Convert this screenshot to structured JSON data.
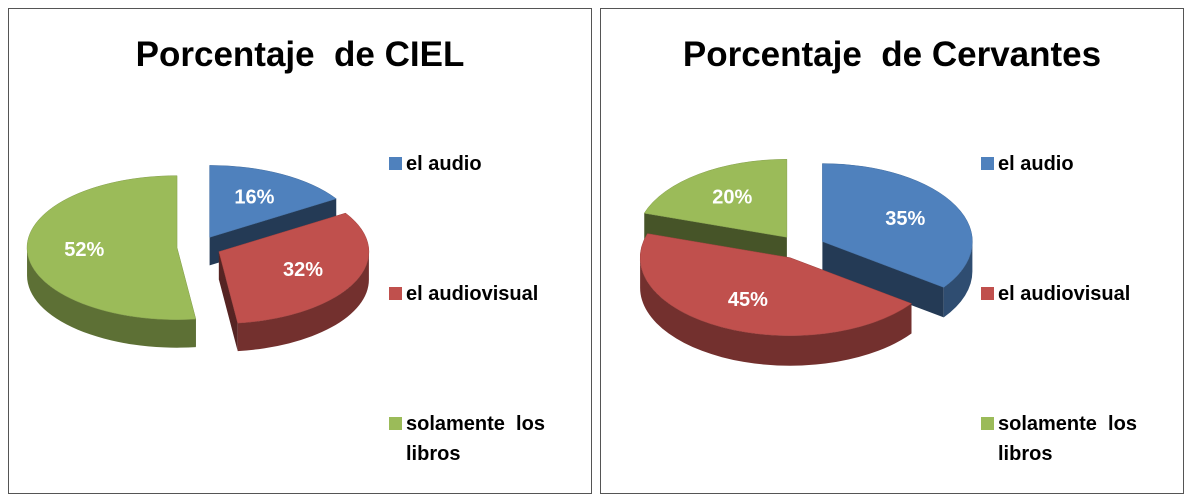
{
  "chart_data": [
    {
      "type": "pie",
      "title": "Porcentaje  de CIEL",
      "categories": [
        "el audio",
        "el audiovisual",
        "solamente  los libros"
      ],
      "values": [
        16,
        32,
        52
      ],
      "value_labels": [
        "16%",
        "32%",
        "52%"
      ],
      "colors": [
        "#4f81bd",
        "#c0504d",
        "#9bbb59"
      ]
    },
    {
      "type": "pie",
      "title": "Porcentaje  de Cervantes",
      "categories": [
        "el audio",
        "el audiovisual",
        "solamente  los libros"
      ],
      "values": [
        35,
        45,
        20
      ],
      "value_labels": [
        "35%",
        "45%",
        "20%"
      ],
      "colors": [
        "#4f81bd",
        "#c0504d",
        "#9bbb59"
      ]
    }
  ]
}
